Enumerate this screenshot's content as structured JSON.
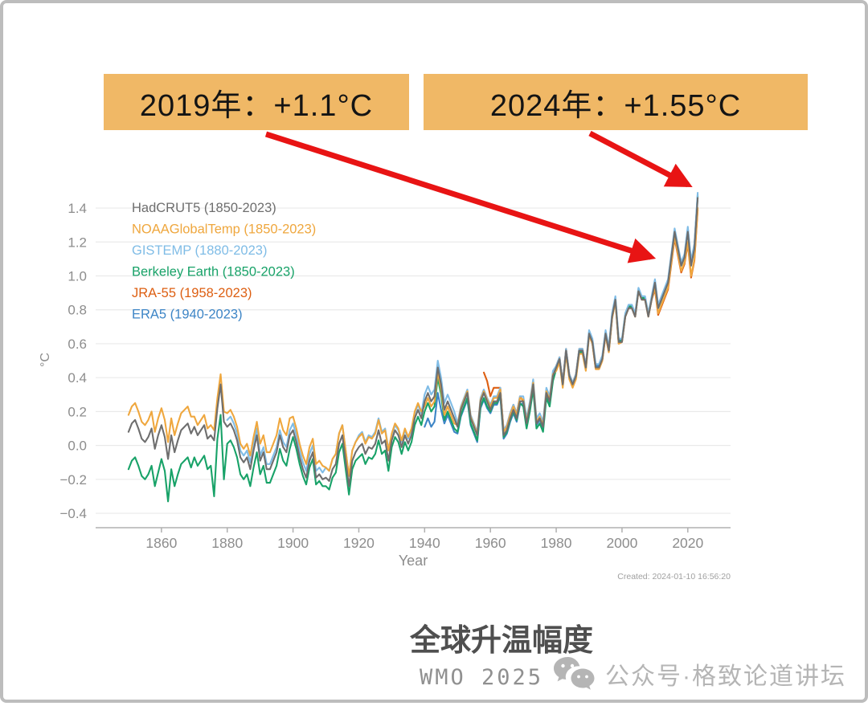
{
  "colors": {
    "callout_bg": "#f0b866",
    "arrow": "#e81414",
    "frame_border": "#bdbdbd",
    "grid": "#eaeaea",
    "axis": "#b0b0b0",
    "tick_text": "#8d8d8d",
    "watermark": "#b5b5b5"
  },
  "callouts": [
    {
      "text": "2019年：+1.1°C"
    },
    {
      "text": "2024年：+1.55°C"
    }
  ],
  "footer": {
    "title": "全球升温幅度",
    "source": "WMO 2025",
    "watermark_text": "公众号·格致论道讲坛"
  },
  "chart_data": {
    "type": "line",
    "title": "",
    "xlabel": "Year",
    "ylabel": "°C",
    "xlim": [
      1840,
      2033
    ],
    "ylim": [
      -0.485,
      1.495
    ],
    "x_ticks": [
      1860,
      1880,
      1900,
      1920,
      1940,
      1960,
      1980,
      2000,
      2020
    ],
    "y_ticks": [
      -0.4,
      -0.2,
      0.0,
      0.2,
      0.4,
      0.6,
      0.8,
      1.0,
      1.2,
      1.4
    ],
    "y_tick_labels": [
      "−0.4",
      "−0.2",
      "0.0",
      "0.2",
      "0.4",
      "0.6",
      "0.8",
      "1.0",
      "1.2",
      "1.4"
    ],
    "grid": true,
    "legend_position": "top-left",
    "created_note": "Created: 2024-01-10 16:56:20",
    "annotations": [
      {
        "year": 2019,
        "value": 1.1,
        "label": "2019年：+1.1°C"
      },
      {
        "year": 2024,
        "value": 1.55,
        "label": "2024年：+1.55°C"
      }
    ],
    "series": [
      {
        "id": "hadcrut5",
        "name": "HadCRUT5 (1850-2023)",
        "color": "#6e6e6e",
        "start_year": 1850,
        "end_year": 2023,
        "values": [
          0.08,
          0.13,
          0.15,
          0.1,
          0.04,
          0.02,
          0.05,
          0.1,
          -0.02,
          0.06,
          0.12,
          0.05,
          -0.08,
          0.06,
          -0.04,
          0.03,
          0.09,
          0.11,
          0.13,
          0.07,
          0.11,
          0.06,
          0.09,
          0.12,
          0.04,
          0.06,
          0.03,
          0.22,
          0.36,
          0.14,
          0.11,
          0.13,
          0.09,
          0.03,
          -0.07,
          -0.1,
          -0.07,
          -0.14,
          -0.03,
          0.06,
          -0.09,
          -0.04,
          -0.14,
          -0.14,
          -0.09,
          -0.04,
          0.06,
          -0.01,
          -0.04,
          0.06,
          0.09,
          0.02,
          -0.07,
          -0.14,
          -0.19,
          -0.09,
          -0.04,
          -0.19,
          -0.17,
          -0.2,
          -0.19,
          -0.21,
          -0.14,
          -0.11,
          0.01,
          0.06,
          -0.09,
          -0.24,
          -0.09,
          -0.04,
          -0.01,
          0.01,
          -0.05,
          -0.01,
          -0.02,
          0.01,
          0.09,
          0.01,
          0.03,
          -0.09,
          0.03,
          0.09,
          0.06,
          -0.01,
          0.06,
          0.01,
          0.06,
          0.16,
          0.21,
          0.16,
          0.26,
          0.31,
          0.26,
          0.29,
          0.46,
          0.36,
          0.21,
          0.26,
          0.21,
          0.16,
          0.11,
          0.21,
          0.26,
          0.31,
          0.16,
          0.11,
          0.06,
          0.26,
          0.31,
          0.26,
          0.21,
          0.26,
          0.26,
          0.31,
          0.06,
          0.09,
          0.16,
          0.21,
          0.16,
          0.26,
          0.26,
          0.13,
          0.23,
          0.36,
          0.13,
          0.16,
          0.11,
          0.31,
          0.26,
          0.41,
          0.46,
          0.51,
          0.36,
          0.56,
          0.41,
          0.36,
          0.41,
          0.56,
          0.56,
          0.46,
          0.66,
          0.61,
          0.46,
          0.46,
          0.51,
          0.66,
          0.56,
          0.76,
          0.86,
          0.61,
          0.61,
          0.76,
          0.81,
          0.81,
          0.76,
          0.91,
          0.86,
          0.86,
          0.76,
          0.86,
          0.96,
          0.81,
          0.86,
          0.91,
          0.96,
          1.11,
          1.26,
          1.16,
          1.06,
          1.11,
          1.26,
          1.06,
          1.16,
          1.46
        ]
      },
      {
        "id": "noaa",
        "name": "NOAAGlobalTemp (1850-2023)",
        "color": "#efa73e",
        "start_year": 1850,
        "end_year": 2023,
        "values": [
          0.18,
          0.23,
          0.25,
          0.2,
          0.14,
          0.12,
          0.15,
          0.2,
          0.08,
          0.16,
          0.22,
          0.15,
          0.02,
          0.16,
          0.06,
          0.13,
          0.19,
          0.21,
          0.23,
          0.17,
          0.17,
          0.12,
          0.15,
          0.18,
          0.1,
          0.12,
          0.09,
          0.28,
          0.42,
          0.2,
          0.19,
          0.21,
          0.17,
          0.11,
          0.01,
          -0.02,
          0.01,
          -0.06,
          0.05,
          0.14,
          0.01,
          0.06,
          -0.04,
          -0.04,
          0.01,
          0.06,
          0.16,
          0.09,
          0.06,
          0.16,
          0.17,
          0.1,
          0.01,
          -0.06,
          -0.11,
          -0.01,
          0.04,
          -0.11,
          -0.09,
          -0.12,
          -0.13,
          -0.15,
          -0.08,
          -0.05,
          0.07,
          0.12,
          -0.03,
          -0.18,
          -0.03,
          0.02,
          0.05,
          0.07,
          0.01,
          0.05,
          0.04,
          0.07,
          0.15,
          0.07,
          0.09,
          -0.03,
          0.07,
          0.13,
          0.1,
          0.03,
          0.1,
          0.05,
          0.1,
          0.2,
          0.25,
          0.2,
          0.23,
          0.28,
          0.23,
          0.26,
          0.43,
          0.33,
          0.18,
          0.23,
          0.18,
          0.13,
          0.12,
          0.22,
          0.27,
          0.32,
          0.17,
          0.12,
          0.07,
          0.27,
          0.32,
          0.27,
          0.23,
          0.28,
          0.28,
          0.33,
          0.08,
          0.11,
          0.18,
          0.23,
          0.18,
          0.28,
          0.27,
          0.14,
          0.24,
          0.37,
          0.14,
          0.17,
          0.12,
          0.32,
          0.27,
          0.42,
          0.44,
          0.49,
          0.34,
          0.54,
          0.39,
          0.34,
          0.39,
          0.54,
          0.54,
          0.44,
          0.65,
          0.6,
          0.45,
          0.45,
          0.5,
          0.65,
          0.55,
          0.75,
          0.85,
          0.6,
          0.61,
          0.76,
          0.81,
          0.81,
          0.76,
          0.91,
          0.86,
          0.86,
          0.76,
          0.86,
          0.93,
          0.78,
          0.83,
          0.88,
          0.93,
          1.08,
          1.23,
          1.13,
          1.03,
          1.08,
          1.2,
          1.0,
          1.1,
          1.4
        ]
      },
      {
        "id": "gistemp",
        "name": "GISTEMP (1880-2023)",
        "color": "#7fbce6",
        "start_year": 1880,
        "end_year": 2023,
        "values": [
          0.15,
          0.17,
          0.13,
          0.07,
          -0.03,
          -0.06,
          -0.03,
          -0.1,
          0.01,
          0.1,
          -0.06,
          -0.01,
          -0.11,
          -0.11,
          -0.06,
          -0.01,
          0.09,
          0.02,
          -0.01,
          0.09,
          0.13,
          0.06,
          -0.03,
          -0.1,
          -0.15,
          -0.05,
          0.0,
          -0.15,
          -0.13,
          -0.16,
          -0.13,
          -0.15,
          -0.08,
          -0.05,
          0.07,
          0.12,
          -0.03,
          -0.18,
          -0.03,
          0.02,
          0.06,
          0.08,
          0.02,
          0.06,
          0.05,
          0.08,
          0.16,
          0.08,
          0.1,
          -0.02,
          0.06,
          0.12,
          0.09,
          0.02,
          0.09,
          0.04,
          0.09,
          0.19,
          0.24,
          0.19,
          0.3,
          0.35,
          0.3,
          0.33,
          0.5,
          0.4,
          0.25,
          0.3,
          0.25,
          0.2,
          0.13,
          0.23,
          0.28,
          0.33,
          0.18,
          0.13,
          0.08,
          0.28,
          0.33,
          0.28,
          0.24,
          0.29,
          0.29,
          0.34,
          0.09,
          0.12,
          0.19,
          0.24,
          0.19,
          0.29,
          0.29,
          0.16,
          0.26,
          0.39,
          0.16,
          0.19,
          0.14,
          0.34,
          0.29,
          0.44,
          0.47,
          0.52,
          0.37,
          0.57,
          0.42,
          0.37,
          0.42,
          0.57,
          0.57,
          0.47,
          0.68,
          0.63,
          0.48,
          0.48,
          0.53,
          0.68,
          0.58,
          0.78,
          0.88,
          0.63,
          0.63,
          0.78,
          0.83,
          0.83,
          0.78,
          0.93,
          0.88,
          0.88,
          0.78,
          0.88,
          0.98,
          0.83,
          0.88,
          0.93,
          0.98,
          1.13,
          1.28,
          1.18,
          1.08,
          1.13,
          1.29,
          1.09,
          1.19,
          1.49
        ]
      },
      {
        "id": "berkeley",
        "name": "Berkeley Earth (1850-2023)",
        "color": "#18a268",
        "start_year": 1850,
        "end_year": 2023,
        "values": [
          -0.14,
          -0.09,
          -0.07,
          -0.12,
          -0.18,
          -0.2,
          -0.17,
          -0.12,
          -0.24,
          -0.16,
          -0.08,
          -0.15,
          -0.33,
          -0.14,
          -0.24,
          -0.17,
          -0.11,
          -0.09,
          -0.07,
          -0.13,
          -0.07,
          -0.12,
          -0.09,
          -0.06,
          -0.14,
          -0.12,
          -0.3,
          0.04,
          0.18,
          -0.2,
          0.01,
          0.03,
          -0.01,
          -0.07,
          -0.17,
          -0.2,
          -0.17,
          -0.24,
          -0.13,
          -0.04,
          -0.17,
          -0.12,
          -0.22,
          -0.22,
          -0.17,
          -0.12,
          -0.02,
          -0.09,
          -0.12,
          -0.02,
          0.05,
          -0.02,
          -0.11,
          -0.18,
          -0.23,
          -0.13,
          -0.08,
          -0.23,
          -0.21,
          -0.24,
          -0.24,
          -0.26,
          -0.19,
          -0.16,
          -0.04,
          0.01,
          -0.14,
          -0.29,
          -0.14,
          -0.09,
          -0.07,
          -0.05,
          -0.11,
          -0.07,
          -0.08,
          -0.05,
          0.03,
          -0.05,
          -0.03,
          -0.15,
          -0.01,
          0.05,
          0.02,
          -0.05,
          0.02,
          -0.03,
          0.02,
          0.12,
          0.17,
          0.12,
          0.2,
          0.25,
          0.2,
          0.23,
          0.4,
          0.3,
          0.15,
          0.2,
          0.15,
          0.1,
          0.08,
          0.18,
          0.23,
          0.28,
          0.13,
          0.08,
          0.03,
          0.23,
          0.28,
          0.23,
          0.2,
          0.25,
          0.25,
          0.3,
          0.05,
          0.08,
          0.15,
          0.2,
          0.15,
          0.25,
          0.23,
          0.1,
          0.2,
          0.33,
          0.1,
          0.13,
          0.08,
          0.28,
          0.23,
          0.38,
          0.45,
          0.5,
          0.35,
          0.55,
          0.4,
          0.35,
          0.4,
          0.55,
          0.55,
          0.45,
          0.66,
          0.61,
          0.46,
          0.46,
          0.51,
          0.66,
          0.56,
          0.76,
          0.86,
          0.61,
          0.62,
          0.77,
          0.82,
          0.82,
          0.77,
          0.92,
          0.87,
          0.87,
          0.77,
          0.87,
          0.96,
          0.81,
          0.86,
          0.91,
          0.96,
          1.11,
          1.26,
          1.16,
          1.06,
          1.11,
          1.27,
          1.07,
          1.17,
          1.47
        ]
      },
      {
        "id": "jra55",
        "name": "JRA-55 (1958-2023)",
        "color": "#dd5f12",
        "start_year": 1958,
        "end_year": 2023,
        "values": [
          0.43,
          0.38,
          0.29,
          0.34,
          0.34,
          0.34,
          0.09,
          0.12,
          0.19,
          0.24,
          0.19,
          0.29,
          0.26,
          0.13,
          0.23,
          0.36,
          0.13,
          0.16,
          0.11,
          0.31,
          0.26,
          0.41,
          0.47,
          0.52,
          0.37,
          0.57,
          0.42,
          0.37,
          0.42,
          0.57,
          0.57,
          0.47,
          0.65,
          0.6,
          0.45,
          0.45,
          0.5,
          0.65,
          0.55,
          0.75,
          0.85,
          0.6,
          0.61,
          0.76,
          0.81,
          0.81,
          0.76,
          0.91,
          0.86,
          0.86,
          0.76,
          0.86,
          0.92,
          0.77,
          0.82,
          0.87,
          0.92,
          1.07,
          1.22,
          1.12,
          1.02,
          1.07,
          1.19,
          0.99,
          1.09,
          1.39
        ]
      },
      {
        "id": "era5",
        "name": "ERA5 (1940-2023)",
        "color": "#3d85c6",
        "start_year": 1940,
        "end_year": 2023,
        "values": [
          0.11,
          0.16,
          0.11,
          0.14,
          0.31,
          0.21,
          0.13,
          0.18,
          0.13,
          0.08,
          0.07,
          0.17,
          0.22,
          0.27,
          0.12,
          0.07,
          0.02,
          0.22,
          0.27,
          0.22,
          0.19,
          0.24,
          0.24,
          0.29,
          0.04,
          0.07,
          0.14,
          0.19,
          0.14,
          0.24,
          0.25,
          0.12,
          0.22,
          0.35,
          0.12,
          0.15,
          0.1,
          0.3,
          0.25,
          0.4,
          0.46,
          0.51,
          0.36,
          0.56,
          0.41,
          0.36,
          0.41,
          0.56,
          0.56,
          0.46,
          0.67,
          0.62,
          0.47,
          0.47,
          0.52,
          0.67,
          0.57,
          0.77,
          0.87,
          0.62,
          0.62,
          0.77,
          0.82,
          0.82,
          0.77,
          0.92,
          0.87,
          0.87,
          0.77,
          0.87,
          0.97,
          0.82,
          0.87,
          0.92,
          0.97,
          1.12,
          1.27,
          1.17,
          1.07,
          1.12,
          1.28,
          1.08,
          1.18,
          1.48
        ]
      }
    ]
  }
}
